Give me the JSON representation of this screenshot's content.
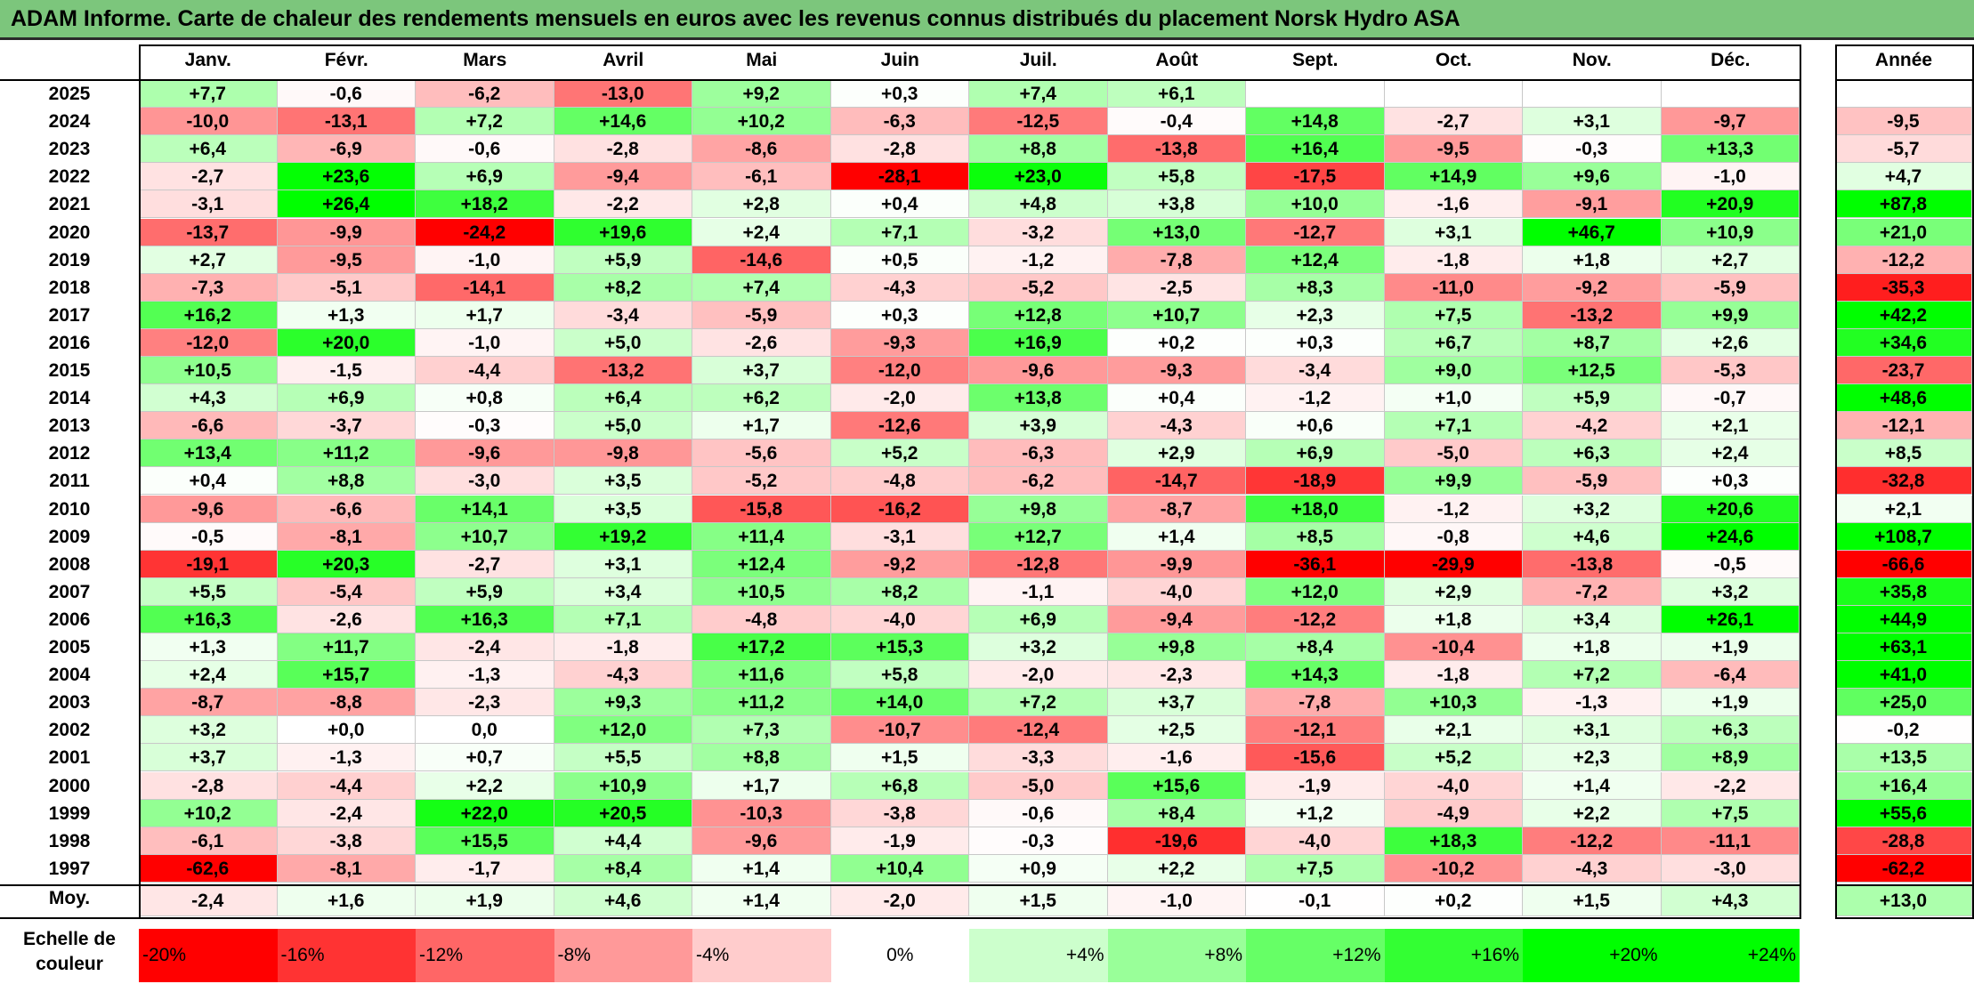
{
  "title": "ADAM Informe. Carte de chaleur des rendements mensuels en euros avec les revenus connus distribués du placement Norsk Hydro ASA",
  "chart_data": {
    "type": "heatmap",
    "title": "ADAM Informe. Carte de chaleur des rendements mensuels en euros avec les revenus connus distribués du placement Norsk Hydro ASA",
    "columns": [
      "Janv.",
      "Févr.",
      "Mars",
      "Avril",
      "Mai",
      "Juin",
      "Juil.",
      "Août",
      "Sept.",
      "Oct.",
      "Nov.",
      "Déc."
    ],
    "year_header": "Année",
    "rows": [
      {
        "label": "2025",
        "values": [
          "+7,7",
          "-0,6",
          "-6,2",
          "-13,0",
          "+9,2",
          "+0,3",
          "+7,4",
          "+6,1",
          "",
          "",
          "",
          ""
        ],
        "year": ""
      },
      {
        "label": "2024",
        "values": [
          "-10,0",
          "-13,1",
          "+7,2",
          "+14,6",
          "+10,2",
          "-6,3",
          "-12,5",
          "-0,4",
          "+14,8",
          "-2,7",
          "+3,1",
          "-9,7"
        ],
        "year": "-9,5"
      },
      {
        "label": "2023",
        "values": [
          "+6,4",
          "-6,9",
          "-0,6",
          "-2,8",
          "-8,6",
          "-2,8",
          "+8,8",
          "-13,8",
          "+16,4",
          "-9,5",
          "-0,3",
          "+13,3"
        ],
        "year": "-5,7"
      },
      {
        "label": "2022",
        "values": [
          "-2,7",
          "+23,6",
          "+6,9",
          "-9,4",
          "-6,1",
          "-28,1",
          "+23,0",
          "+5,8",
          "-17,5",
          "+14,9",
          "+9,6",
          "-1,0"
        ],
        "year": "+4,7"
      },
      {
        "label": "2021",
        "values": [
          "-3,1",
          "+26,4",
          "+18,2",
          "-2,2",
          "+2,8",
          "+0,4",
          "+4,8",
          "+3,8",
          "+10,0",
          "-1,6",
          "-9,1",
          "+20,9"
        ],
        "year": "+87,8"
      },
      {
        "label": "2020",
        "values": [
          "-13,7",
          "-9,9",
          "-24,2",
          "+19,6",
          "+2,4",
          "+7,1",
          "-3,2",
          "+13,0",
          "-12,7",
          "+3,1",
          "+46,7",
          "+10,9"
        ],
        "year": "+21,0"
      },
      {
        "label": "2019",
        "values": [
          "+2,7",
          "-9,5",
          "-1,0",
          "+5,9",
          "-14,6",
          "+0,5",
          "-1,2",
          "-7,8",
          "+12,4",
          "-1,8",
          "+1,8",
          "+2,7"
        ],
        "year": "-12,2"
      },
      {
        "label": "2018",
        "values": [
          "-7,3",
          "-5,1",
          "-14,1",
          "+8,2",
          "+7,4",
          "-4,3",
          "-5,2",
          "-2,5",
          "+8,3",
          "-11,0",
          "-9,2",
          "-5,9"
        ],
        "year": "-35,3"
      },
      {
        "label": "2017",
        "values": [
          "+16,2",
          "+1,3",
          "+1,7",
          "-3,4",
          "-5,9",
          "+0,3",
          "+12,8",
          "+10,7",
          "+2,3",
          "+7,5",
          "-13,2",
          "+9,9"
        ],
        "year": "+42,2"
      },
      {
        "label": "2016",
        "values": [
          "-12,0",
          "+20,0",
          "-1,0",
          "+5,0",
          "-2,6",
          "-9,3",
          "+16,9",
          "+0,2",
          "+0,3",
          "+6,7",
          "+8,7",
          "+2,6"
        ],
        "year": "+34,6"
      },
      {
        "label": "2015",
        "values": [
          "+10,5",
          "-1,5",
          "-4,4",
          "-13,2",
          "+3,7",
          "-12,0",
          "-9,6",
          "-9,3",
          "-3,4",
          "+9,0",
          "+12,5",
          "-5,3"
        ],
        "year": "-23,7"
      },
      {
        "label": "2014",
        "values": [
          "+4,3",
          "+6,9",
          "+0,8",
          "+6,4",
          "+6,2",
          "-2,0",
          "+13,8",
          "+0,4",
          "-1,2",
          "+1,0",
          "+5,9",
          "-0,7"
        ],
        "year": "+48,6"
      },
      {
        "label": "2013",
        "values": [
          "-6,6",
          "-3,7",
          "-0,3",
          "+5,0",
          "+1,7",
          "-12,6",
          "+3,9",
          "-4,3",
          "+0,6",
          "+7,1",
          "-4,2",
          "+2,1"
        ],
        "year": "-12,1"
      },
      {
        "label": "2012",
        "values": [
          "+13,4",
          "+11,2",
          "-9,6",
          "-9,8",
          "-5,6",
          "+5,2",
          "-6,3",
          "+2,9",
          "+6,9",
          "-5,0",
          "+6,3",
          "+2,4"
        ],
        "year": "+8,5"
      },
      {
        "label": "2011",
        "values": [
          "+0,4",
          "+8,8",
          "-3,0",
          "+3,5",
          "-5,2",
          "-4,8",
          "-6,2",
          "-14,7",
          "-18,9",
          "+9,9",
          "-5,9",
          "+0,3"
        ],
        "year": "-32,8"
      },
      {
        "label": "2010",
        "values": [
          "-9,6",
          "-6,6",
          "+14,1",
          "+3,5",
          "-15,8",
          "-16,2",
          "+9,8",
          "-8,7",
          "+18,0",
          "-1,2",
          "+3,2",
          "+20,6"
        ],
        "year": "+2,1"
      },
      {
        "label": "2009",
        "values": [
          "-0,5",
          "-8,1",
          "+10,7",
          "+19,2",
          "+11,4",
          "-3,1",
          "+12,7",
          "+1,4",
          "+8,5",
          "-0,8",
          "+4,6",
          "+24,6"
        ],
        "year": "+108,7"
      },
      {
        "label": "2008",
        "values": [
          "-19,1",
          "+20,3",
          "-2,7",
          "+3,1",
          "+12,4",
          "-9,2",
          "-12,8",
          "-9,9",
          "-36,1",
          "-29,9",
          "-13,8",
          "-0,5"
        ],
        "year": "-66,6"
      },
      {
        "label": "2007",
        "values": [
          "+5,5",
          "-5,4",
          "+5,9",
          "+3,4",
          "+10,5",
          "+8,2",
          "-1,1",
          "-4,0",
          "+12,0",
          "+2,9",
          "-7,2",
          "+3,2"
        ],
        "year": "+35,8"
      },
      {
        "label": "2006",
        "values": [
          "+16,3",
          "-2,6",
          "+16,3",
          "+7,1",
          "-4,8",
          "-4,0",
          "+6,9",
          "-9,4",
          "-12,2",
          "+1,8",
          "+3,4",
          "+26,1"
        ],
        "year": "+44,9"
      },
      {
        "label": "2005",
        "values": [
          "+1,3",
          "+11,7",
          "-2,4",
          "-1,8",
          "+17,2",
          "+15,3",
          "+3,2",
          "+9,8",
          "+8,4",
          "-10,4",
          "+1,8",
          "+1,9"
        ],
        "year": "+63,1"
      },
      {
        "label": "2004",
        "values": [
          "+2,4",
          "+15,7",
          "-1,3",
          "-4,3",
          "+11,6",
          "+5,8",
          "-2,0",
          "-2,3",
          "+14,3",
          "-1,8",
          "+7,2",
          "-6,4"
        ],
        "year": "+41,0"
      },
      {
        "label": "2003",
        "values": [
          "-8,7",
          "-8,8",
          "-2,3",
          "+9,3",
          "+11,2",
          "+14,0",
          "+7,2",
          "+3,7",
          "-7,8",
          "+10,3",
          "-1,3",
          "+1,9"
        ],
        "year": "+25,0"
      },
      {
        "label": "2002",
        "values": [
          "+3,2",
          "+0,0",
          "0,0",
          "+12,0",
          "+7,3",
          "-10,7",
          "-12,4",
          "+2,5",
          "-12,1",
          "+2,1",
          "+3,1",
          "+6,3"
        ],
        "year": "-0,2"
      },
      {
        "label": "2001",
        "values": [
          "+3,7",
          "-1,3",
          "+0,7",
          "+5,5",
          "+8,8",
          "+1,5",
          "-3,3",
          "-1,6",
          "-15,6",
          "+5,2",
          "+2,3",
          "+8,9"
        ],
        "year": "+13,5"
      },
      {
        "label": "2000",
        "values": [
          "-2,8",
          "-4,4",
          "+2,2",
          "+10,9",
          "+1,7",
          "+6,8",
          "-5,0",
          "+15,6",
          "-1,9",
          "-4,0",
          "+1,4",
          "-2,2"
        ],
        "year": "+16,4"
      },
      {
        "label": "1999",
        "values": [
          "+10,2",
          "-2,4",
          "+22,0",
          "+20,5",
          "-10,3",
          "-3,8",
          "-0,6",
          "+8,4",
          "+1,2",
          "-4,9",
          "+2,2",
          "+7,5"
        ],
        "year": "+55,6"
      },
      {
        "label": "1998",
        "values": [
          "-6,1",
          "-3,8",
          "+15,5",
          "+4,4",
          "-9,6",
          "-1,9",
          "-0,3",
          "-19,6",
          "-4,0",
          "+18,3",
          "-12,2",
          "-11,1"
        ],
        "year": "-28,8"
      },
      {
        "label": "1997",
        "values": [
          "-62,6",
          "-8,1",
          "-1,7",
          "+8,4",
          "+1,4",
          "+10,4",
          "+0,9",
          "+2,2",
          "+7,5",
          "-10,2",
          "-4,3",
          "-3,0"
        ],
        "year": "-62,2"
      }
    ],
    "average": {
      "label": "Moy.",
      "values": [
        "-2,4",
        "+1,6",
        "+1,9",
        "+4,6",
        "+1,4",
        "-2,0",
        "+1,5",
        "-1,0",
        "-0,1",
        "+0,2",
        "+1,5",
        "+4,3"
      ],
      "year": "+13,0"
    },
    "color_scale": {
      "label_line1": "Echelle de",
      "label_line2": "couleur",
      "stops": [
        "-20%",
        "-16%",
        "-12%",
        "-8%",
        "-4%",
        "0%",
        "+4%",
        "+8%",
        "+12%",
        "+16%",
        "+20%",
        "+24%"
      ]
    },
    "colors": {
      "negative_max": "#ff0000",
      "neutral": "#ffffff",
      "positive_max": "#00ff00",
      "title_bg": "#7cc67c"
    }
  }
}
